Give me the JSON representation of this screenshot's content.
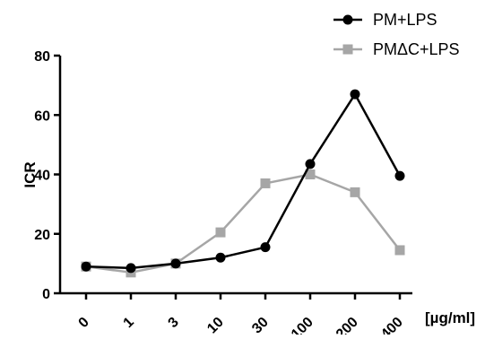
{
  "chart_data": {
    "type": "line",
    "title": "",
    "xlabel": "[µg/ml]",
    "ylabel": "ICR",
    "categories": [
      "0",
      "1",
      "3",
      "10",
      "30",
      "100",
      "200",
      "400"
    ],
    "ylim": [
      0,
      80
    ],
    "yticks": [
      0,
      20,
      40,
      60,
      80
    ],
    "grid": false,
    "legend_position": "top-right",
    "series": [
      {
        "name": "PM+LPS",
        "color": "#000000",
        "marker": "circle",
        "values": [
          9,
          8.5,
          10,
          12,
          15.5,
          43.5,
          67,
          39.5
        ]
      },
      {
        "name": "PMΔC+LPS",
        "color": "#a6a6a6",
        "marker": "square",
        "values": [
          9,
          7,
          10,
          20.5,
          37,
          40,
          34,
          14.5
        ]
      }
    ]
  }
}
